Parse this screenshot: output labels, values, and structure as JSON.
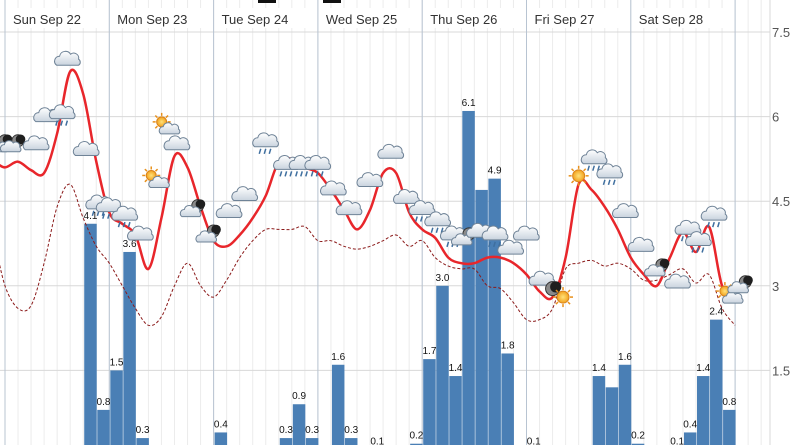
{
  "colors": {
    "bar": "#4a7fb5",
    "max_line": "#e8262b",
    "min_line": "#8b1a1a",
    "grid_major": "#d8d8d8",
    "grid_minor": "#ececec",
    "day_divider": "#b8c4d2"
  },
  "chart_data": {
    "type": "bar",
    "title": "",
    "xlabel": "",
    "ylabel": "",
    "ylim": [
      0,
      7.5
    ],
    "y_ticks": [
      "7.5",
      "6",
      "4.5",
      "3",
      "1.5"
    ],
    "grid": true,
    "day_labels": [
      "Sun Sep 22",
      "Mon Sep 23",
      "Tue Sep 24",
      "Wed Sep 25",
      "Thu Sep 26",
      "Fri Sep 27",
      "Sat Sep 28"
    ],
    "bars": [
      {
        "day": 0.75,
        "value": 4.1,
        "label": "4.1"
      },
      {
        "day": 0.875,
        "value": 0.8,
        "label": "0.8"
      },
      {
        "day": 1.0,
        "value": 1.5,
        "label": "1.5"
      },
      {
        "day": 1.125,
        "value": 3.6,
        "label": "3.6"
      },
      {
        "day": 1.25,
        "value": 0.3,
        "label": "0.3"
      },
      {
        "day": 1.875,
        "value": 0.1,
        "label": ""
      },
      {
        "day": 2.0,
        "value": 0.4,
        "label": "0.4"
      },
      {
        "day": 2.125,
        "value": 0.1,
        "label": ""
      },
      {
        "day": 2.625,
        "value": 0.3,
        "label": "0.3"
      },
      {
        "day": 2.75,
        "value": 0.9,
        "label": "0.9"
      },
      {
        "day": 2.875,
        "value": 0.3,
        "label": "0.3"
      },
      {
        "day": 3.0,
        "value": 0.1,
        "label": ""
      },
      {
        "day": 3.125,
        "value": 1.6,
        "label": "1.6"
      },
      {
        "day": 3.25,
        "value": 0.3,
        "label": "0.3"
      },
      {
        "day": 3.5,
        "value": 0.1,
        "label": "0.1"
      },
      {
        "day": 3.875,
        "value": 0.2,
        "label": "0.2"
      },
      {
        "day": 4.0,
        "value": 1.7,
        "label": "1.7"
      },
      {
        "day": 4.125,
        "value": 3.0,
        "label": "3.0"
      },
      {
        "day": 4.25,
        "value": 1.4,
        "label": "1.4"
      },
      {
        "day": 4.375,
        "value": 6.1,
        "label": "6.1"
      },
      {
        "day": 4.5,
        "value": 4.7,
        "label": ""
      },
      {
        "day": 4.625,
        "value": 4.9,
        "label": "4.9"
      },
      {
        "day": 4.75,
        "value": 1.8,
        "label": "1.8"
      },
      {
        "day": 5.0,
        "value": 0.1,
        "label": "0.1"
      },
      {
        "day": 5.625,
        "value": 1.4,
        "label": "1.4"
      },
      {
        "day": 5.75,
        "value": 1.2,
        "label": ""
      },
      {
        "day": 5.875,
        "value": 1.6,
        "label": "1.6"
      },
      {
        "day": 6.0,
        "value": 0.2,
        "label": "0.2"
      },
      {
        "day": 6.375,
        "value": 0.1,
        "label": "0.1"
      },
      {
        "day": 6.5,
        "value": 0.4,
        "label": "0.4"
      },
      {
        "day": 6.625,
        "value": 1.4,
        "label": "1.4"
      },
      {
        "day": 6.75,
        "value": 2.4,
        "label": "2.4"
      },
      {
        "day": 6.875,
        "value": 0.8,
        "label": "0.8"
      }
    ],
    "series": [
      {
        "points": [
          [
            -0.1,
            5.2
          ],
          [
            0.0,
            5.1
          ],
          [
            0.125,
            5.2
          ],
          [
            0.25,
            5.05
          ],
          [
            0.375,
            5.0
          ],
          [
            0.5,
            5.7
          ],
          [
            0.625,
            6.8
          ],
          [
            0.75,
            6.4
          ],
          [
            0.875,
            5.2
          ],
          [
            1.0,
            4.3
          ],
          [
            1.125,
            4.1
          ],
          [
            1.25,
            3.9
          ],
          [
            1.375,
            3.3
          ],
          [
            1.5,
            4.2
          ],
          [
            1.625,
            5.3
          ],
          [
            1.75,
            5.1
          ],
          [
            1.875,
            4.4
          ],
          [
            2.0,
            3.8
          ],
          [
            2.125,
            3.7
          ],
          [
            2.25,
            3.9
          ],
          [
            2.375,
            4.2
          ],
          [
            2.5,
            4.6
          ],
          [
            2.625,
            5.2
          ],
          [
            2.75,
            5.25
          ],
          [
            2.875,
            5.1
          ],
          [
            3.0,
            5.0
          ],
          [
            3.125,
            4.7
          ],
          [
            3.25,
            4.35
          ],
          [
            3.375,
            4.0
          ],
          [
            3.5,
            4.35
          ],
          [
            3.625,
            5.0
          ],
          [
            3.75,
            5.0
          ],
          [
            3.875,
            4.3
          ],
          [
            4.0,
            4.0
          ],
          [
            4.125,
            3.85
          ],
          [
            4.25,
            3.5
          ],
          [
            4.375,
            3.4
          ],
          [
            4.5,
            3.4
          ],
          [
            4.625,
            3.5
          ],
          [
            4.75,
            3.5
          ],
          [
            4.875,
            3.4
          ],
          [
            5.0,
            3.2
          ],
          [
            5.125,
            2.9
          ],
          [
            5.25,
            2.8
          ],
          [
            5.375,
            3.5
          ],
          [
            5.5,
            4.8
          ],
          [
            5.625,
            4.7
          ],
          [
            5.75,
            4.4
          ],
          [
            5.875,
            4.0
          ],
          [
            6.0,
            3.5
          ],
          [
            6.125,
            3.2
          ],
          [
            6.25,
            3.0
          ],
          [
            6.375,
            3.5
          ],
          [
            6.5,
            3.95
          ],
          [
            6.625,
            3.6
          ],
          [
            6.75,
            4.05
          ],
          [
            6.875,
            3.0
          ],
          [
            7.0,
            2.8
          ]
        ]
      },
      {
        "points": [
          [
            -0.1,
            3.8
          ],
          [
            0.0,
            3.0
          ],
          [
            0.125,
            2.6
          ],
          [
            0.25,
            2.65
          ],
          [
            0.375,
            3.4
          ],
          [
            0.5,
            4.4
          ],
          [
            0.625,
            4.8
          ],
          [
            0.75,
            4.2
          ],
          [
            0.875,
            3.7
          ],
          [
            1.0,
            3.4
          ],
          [
            1.125,
            3.0
          ],
          [
            1.25,
            2.6
          ],
          [
            1.375,
            2.3
          ],
          [
            1.5,
            2.45
          ],
          [
            1.625,
            3.0
          ],
          [
            1.75,
            3.4
          ],
          [
            1.875,
            3.0
          ],
          [
            2.0,
            2.8
          ],
          [
            2.125,
            3.1
          ],
          [
            2.25,
            3.5
          ],
          [
            2.375,
            3.8
          ],
          [
            2.5,
            4.0
          ],
          [
            2.625,
            4.0
          ],
          [
            2.75,
            4.0
          ],
          [
            2.875,
            4.05
          ],
          [
            3.0,
            3.8
          ],
          [
            3.125,
            3.8
          ],
          [
            3.25,
            3.7
          ],
          [
            3.375,
            3.65
          ],
          [
            3.5,
            3.7
          ],
          [
            3.625,
            3.8
          ],
          [
            3.75,
            3.9
          ],
          [
            3.875,
            3.7
          ],
          [
            4.0,
            3.8
          ],
          [
            4.125,
            3.5
          ],
          [
            4.25,
            3.35
          ],
          [
            4.375,
            3.3
          ],
          [
            4.5,
            3.3
          ],
          [
            4.625,
            3.0
          ],
          [
            4.75,
            2.95
          ],
          [
            4.875,
            2.7
          ],
          [
            5.0,
            2.4
          ],
          [
            5.125,
            2.4
          ],
          [
            5.25,
            2.6
          ],
          [
            5.375,
            3.3
          ],
          [
            5.5,
            3.4
          ],
          [
            5.625,
            3.45
          ],
          [
            5.75,
            3.35
          ],
          [
            5.875,
            3.4
          ],
          [
            6.0,
            3.3
          ],
          [
            6.125,
            3.1
          ],
          [
            6.25,
            3.1
          ],
          [
            6.375,
            3.2
          ],
          [
            6.5,
            3.3
          ],
          [
            6.625,
            3.05
          ],
          [
            6.75,
            3.2
          ],
          [
            6.875,
            2.6
          ],
          [
            7.0,
            2.3
          ]
        ]
      }
    ],
    "icons": [
      {
        "day": -0.05,
        "value": 5.5,
        "icon": "moon-cloud-icon"
      },
      {
        "day": 0.075,
        "value": 5.5,
        "icon": "moon-cloud-icon"
      },
      {
        "day": 0.3,
        "value": 5.5,
        "icon": "cloud-icon"
      },
      {
        "day": 0.4,
        "value": 6.0,
        "icon": "cloud-icon"
      },
      {
        "day": 0.55,
        "value": 6.0,
        "icon": "cloud-rain-icon"
      },
      {
        "day": 0.6,
        "value": 7.0,
        "icon": "cloud-icon"
      },
      {
        "day": 0.78,
        "value": 5.4,
        "icon": "cloud-icon"
      },
      {
        "day": 0.9,
        "value": 4.4,
        "icon": "cloud-rain-icon"
      },
      {
        "day": 1.0,
        "value": 4.35,
        "icon": "cloud-rain-icon"
      },
      {
        "day": 1.15,
        "value": 4.2,
        "icon": "cloud-rain-icon"
      },
      {
        "day": 1.3,
        "value": 3.9,
        "icon": "cloud-icon"
      },
      {
        "day": 1.45,
        "value": 4.85,
        "icon": "sun-cloud-icon"
      },
      {
        "day": 1.55,
        "value": 5.8,
        "icon": "sun-cloud-icon"
      },
      {
        "day": 1.65,
        "value": 5.5,
        "icon": "cloud-icon"
      },
      {
        "day": 1.8,
        "value": 4.35,
        "icon": "moon-cloud-icon"
      },
      {
        "day": 1.95,
        "value": 3.9,
        "icon": "moon-cloud-icon"
      },
      {
        "day": 2.15,
        "value": 4.3,
        "icon": "cloud-icon"
      },
      {
        "day": 2.3,
        "value": 4.6,
        "icon": "cloud-icon"
      },
      {
        "day": 2.5,
        "value": 5.5,
        "icon": "cloud-rain-icon"
      },
      {
        "day": 2.7,
        "value": 5.1,
        "icon": "cloud-rain-icon"
      },
      {
        "day": 2.85,
        "value": 5.1,
        "icon": "cloud-rain-icon"
      },
      {
        "day": 3.0,
        "value": 5.1,
        "icon": "cloud-rain-icon"
      },
      {
        "day": 3.15,
        "value": 4.7,
        "icon": "cloud-icon"
      },
      {
        "day": 3.3,
        "value": 4.35,
        "icon": "cloud-icon"
      },
      {
        "day": 3.5,
        "value": 4.85,
        "icon": "cloud-icon"
      },
      {
        "day": 3.7,
        "value": 5.35,
        "icon": "cloud-icon"
      },
      {
        "day": 3.85,
        "value": 4.55,
        "icon": "cloud-icon"
      },
      {
        "day": 4.0,
        "value": 4.3,
        "icon": "cloud-rain-icon"
      },
      {
        "day": 4.15,
        "value": 4.1,
        "icon": "cloud-rain-icon"
      },
      {
        "day": 4.3,
        "value": 3.85,
        "icon": "cloud-rain-icon"
      },
      {
        "day": 4.4,
        "value": 3.85,
        "icon": "moon-cloud-icon"
      },
      {
        "day": 4.55,
        "value": 3.95,
        "icon": "cloud-icon"
      },
      {
        "day": 4.7,
        "value": 3.85,
        "icon": "cloud-rain-icon"
      },
      {
        "day": 4.85,
        "value": 3.65,
        "icon": "cloud-icon"
      },
      {
        "day": 5.0,
        "value": 3.9,
        "icon": "cloud-icon"
      },
      {
        "day": 5.15,
        "value": 3.1,
        "icon": "cloud-icon"
      },
      {
        "day": 5.25,
        "value": 2.95,
        "icon": "moon-icon"
      },
      {
        "day": 5.35,
        "value": 2.8,
        "icon": "sun-icon"
      },
      {
        "day": 5.5,
        "value": 4.95,
        "icon": "sun-icon"
      },
      {
        "day": 5.65,
        "value": 5.2,
        "icon": "cloud-rain-icon"
      },
      {
        "day": 5.8,
        "value": 4.95,
        "icon": "cloud-rain-icon"
      },
      {
        "day": 5.95,
        "value": 4.3,
        "icon": "cloud-icon"
      },
      {
        "day": 6.1,
        "value": 3.7,
        "icon": "cloud-icon"
      },
      {
        "day": 6.25,
        "value": 3.3,
        "icon": "moon-cloud-icon"
      },
      {
        "day": 6.45,
        "value": 3.05,
        "icon": "cloud-icon"
      },
      {
        "day": 6.55,
        "value": 3.95,
        "icon": "cloud-rain-icon"
      },
      {
        "day": 6.65,
        "value": 3.75,
        "icon": "cloud-rain-icon"
      },
      {
        "day": 6.8,
        "value": 4.2,
        "icon": "cloud-rain-icon"
      },
      {
        "day": 6.95,
        "value": 2.8,
        "icon": "sun-cloud-icon"
      },
      {
        "day": 7.05,
        "value": 3.0,
        "icon": "moon-cloud-icon"
      }
    ]
  }
}
